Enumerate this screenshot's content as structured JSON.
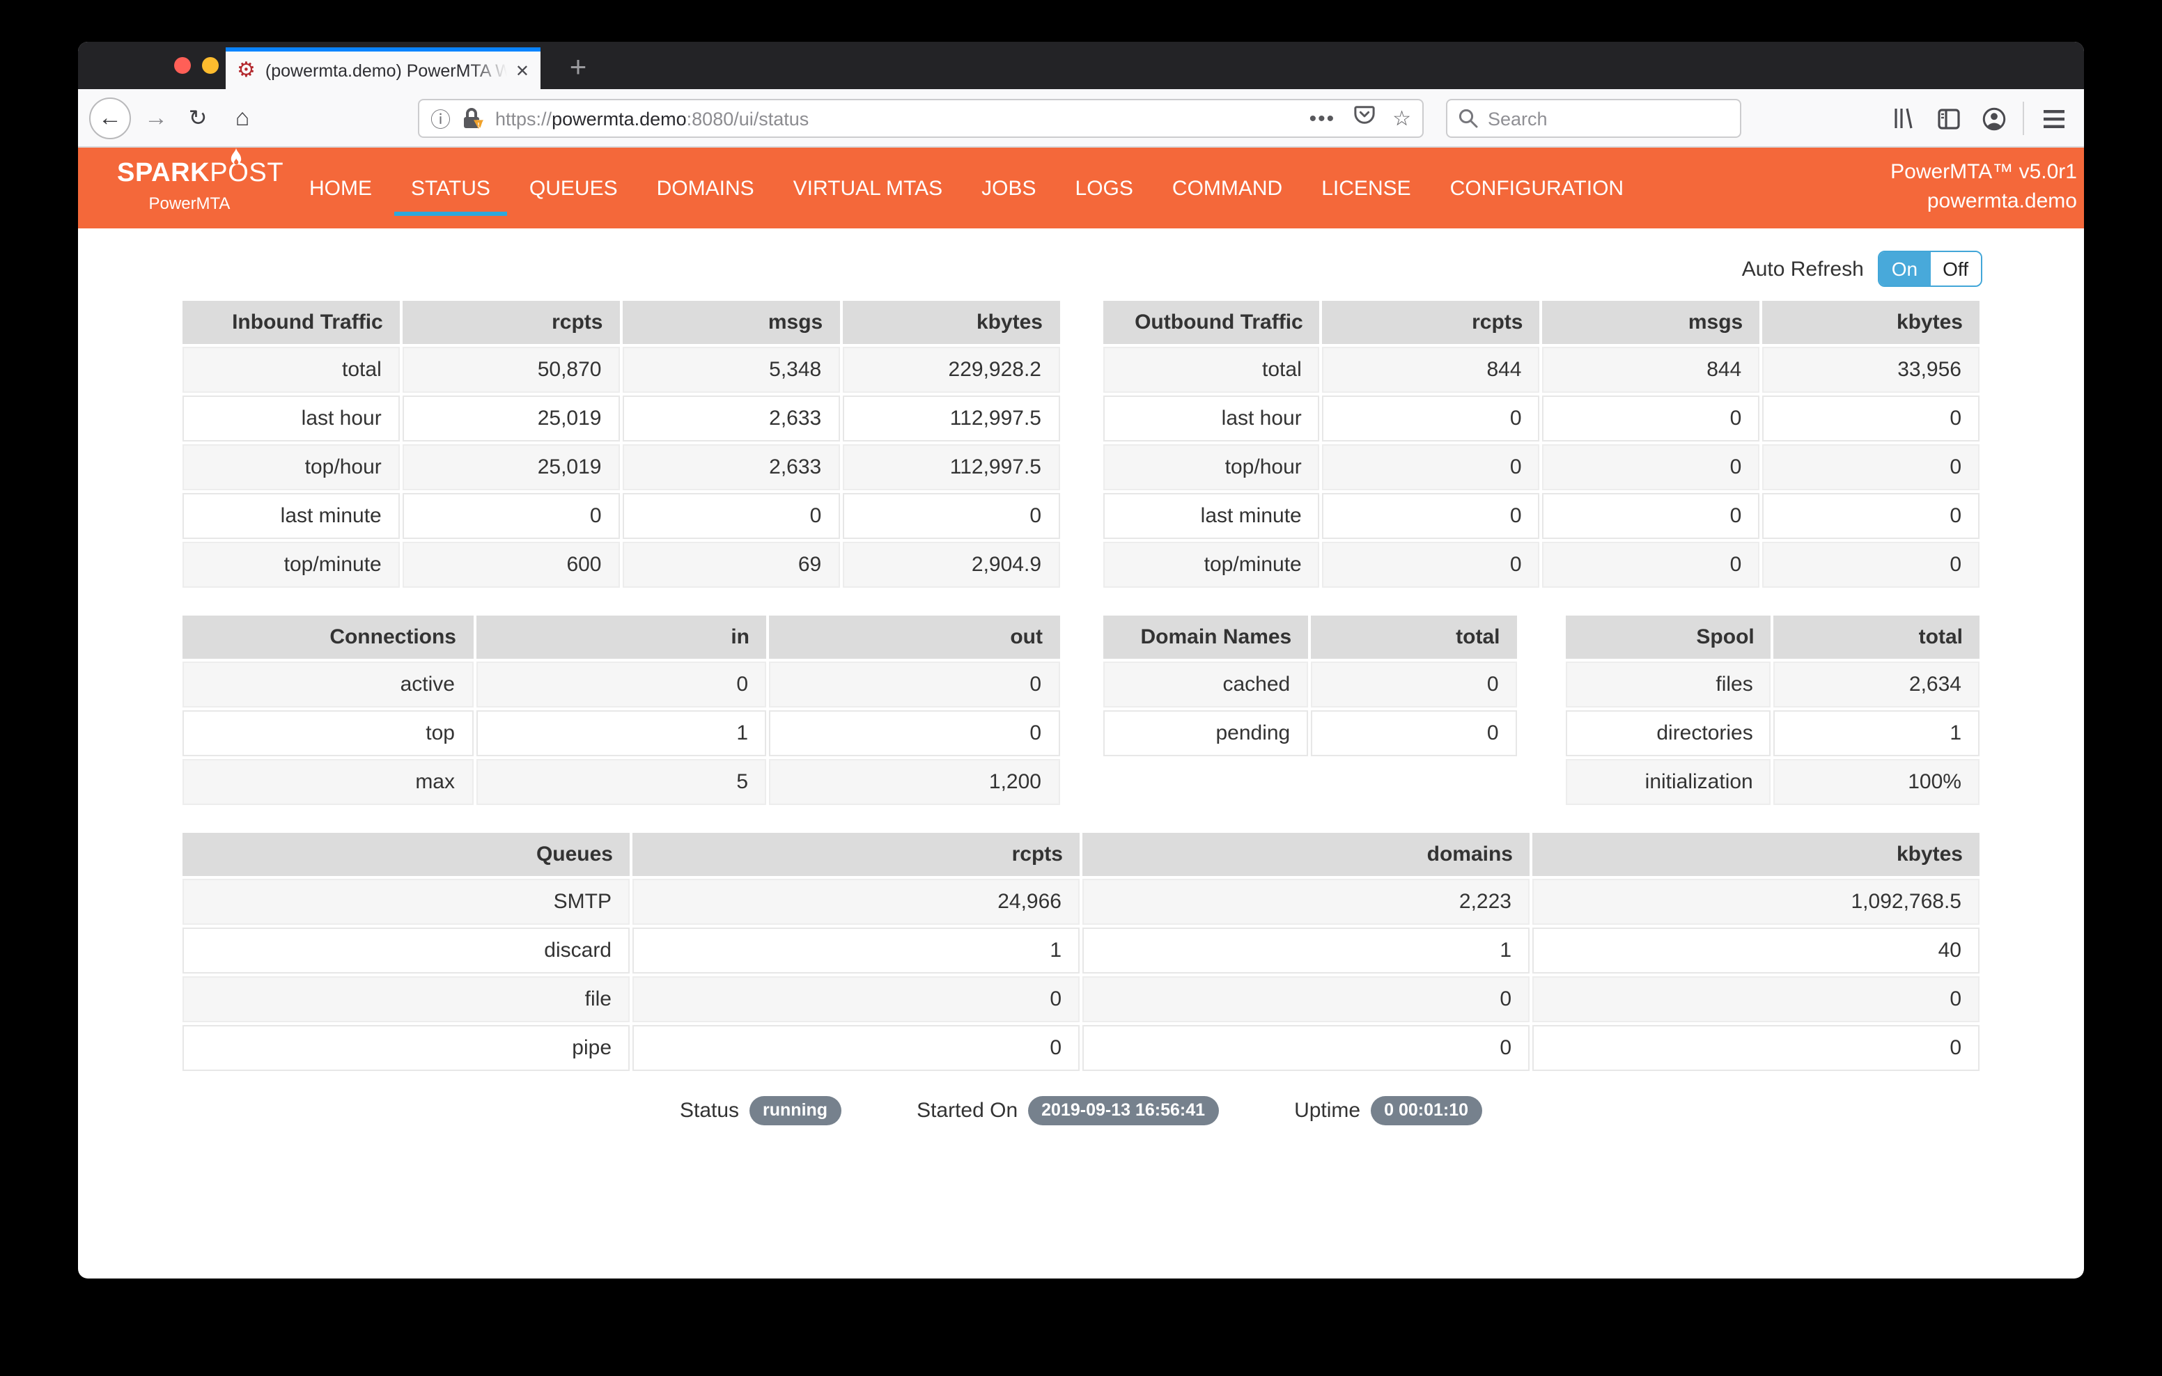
{
  "browser": {
    "tab_title": "(powermta.demo) PowerMTA W",
    "url": {
      "scheme": "https://",
      "host": "powermta.demo",
      "path": ":8080/ui/status"
    },
    "search_placeholder": "Search",
    "icons": {
      "favicon_gear": "⚙",
      "close": "✕",
      "new_tab": "+",
      "back": "←",
      "forward": "→",
      "reload": "↻",
      "home": "⌂",
      "meatballs": "•••",
      "star": "☆"
    }
  },
  "navbar": {
    "brand": {
      "bold": "SPARK",
      "light_left": "P",
      "o": "O",
      "light_right": "ST",
      "subtitle": "PowerMTA"
    },
    "items": [
      {
        "label": "HOME",
        "active": false
      },
      {
        "label": "STATUS",
        "active": true
      },
      {
        "label": "QUEUES",
        "active": false
      },
      {
        "label": "DOMAINS",
        "active": false
      },
      {
        "label": "VIRTUAL MTAS",
        "active": false
      },
      {
        "label": "JOBS",
        "active": false
      },
      {
        "label": "LOGS",
        "active": false
      },
      {
        "label": "COMMAND",
        "active": false
      },
      {
        "label": "LICENSE",
        "active": false
      },
      {
        "label": "CONFIGURATION",
        "active": false
      }
    ],
    "right": {
      "version": "PowerMTA™ v5.0r1",
      "host": "powermta.demo"
    }
  },
  "auto_refresh": {
    "label": "Auto Refresh",
    "on": "On",
    "off": "Off"
  },
  "tables": {
    "inbound": {
      "title": "Inbound Traffic",
      "columns": [
        "rcpts",
        "msgs",
        "kbytes"
      ],
      "rows": [
        [
          "total",
          "50,870",
          "5,348",
          "229,928.2"
        ],
        [
          "last hour",
          "25,019",
          "2,633",
          "112,997.5"
        ],
        [
          "top/hour",
          "25,019",
          "2,633",
          "112,997.5"
        ],
        [
          "last minute",
          "0",
          "0",
          "0"
        ],
        [
          "top/minute",
          "600",
          "69",
          "2,904.9"
        ]
      ]
    },
    "outbound": {
      "title": "Outbound Traffic",
      "columns": [
        "rcpts",
        "msgs",
        "kbytes"
      ],
      "rows": [
        [
          "total",
          "844",
          "844",
          "33,956"
        ],
        [
          "last hour",
          "0",
          "0",
          "0"
        ],
        [
          "top/hour",
          "0",
          "0",
          "0"
        ],
        [
          "last minute",
          "0",
          "0",
          "0"
        ],
        [
          "top/minute",
          "0",
          "0",
          "0"
        ]
      ]
    },
    "connections": {
      "title": "Connections",
      "columns": [
        "in",
        "out"
      ],
      "rows": [
        [
          "active",
          "0",
          "0"
        ],
        [
          "top",
          "1",
          "0"
        ],
        [
          "max",
          "5",
          "1,200"
        ]
      ]
    },
    "domain_names": {
      "title": "Domain Names",
      "columns": [
        "total"
      ],
      "rows": [
        [
          "cached",
          "0"
        ],
        [
          "pending",
          "0"
        ]
      ]
    },
    "spool": {
      "title": "Spool",
      "columns": [
        "total"
      ],
      "rows": [
        [
          "files",
          "2,634"
        ],
        [
          "directories",
          "1"
        ],
        [
          "initialization",
          "100%"
        ]
      ]
    },
    "queues": {
      "title": "Queues",
      "columns": [
        "rcpts",
        "domains",
        "kbytes"
      ],
      "rows": [
        [
          "SMTP",
          "24,966",
          "2,223",
          "1,092,768.5"
        ],
        [
          "discard",
          "1",
          "1",
          "40"
        ],
        [
          "file",
          "0",
          "0",
          "0"
        ],
        [
          "pipe",
          "0",
          "0",
          "0"
        ]
      ]
    }
  },
  "status_bar": [
    {
      "label": "Status",
      "value": "running"
    },
    {
      "label": "Started On",
      "value": "2019-09-13 16:56:41"
    },
    {
      "label": "Uptime",
      "value": "0 00:01:10"
    }
  ],
  "colors": {
    "navbar_orange": "#f4683a",
    "accent_blue": "#2ea8dc",
    "toggle_blue": "#48a9da",
    "badge_gray": "#76818d",
    "tab_stripe_blue": "#0a84ff",
    "header_gray": "#dcdcdc"
  }
}
